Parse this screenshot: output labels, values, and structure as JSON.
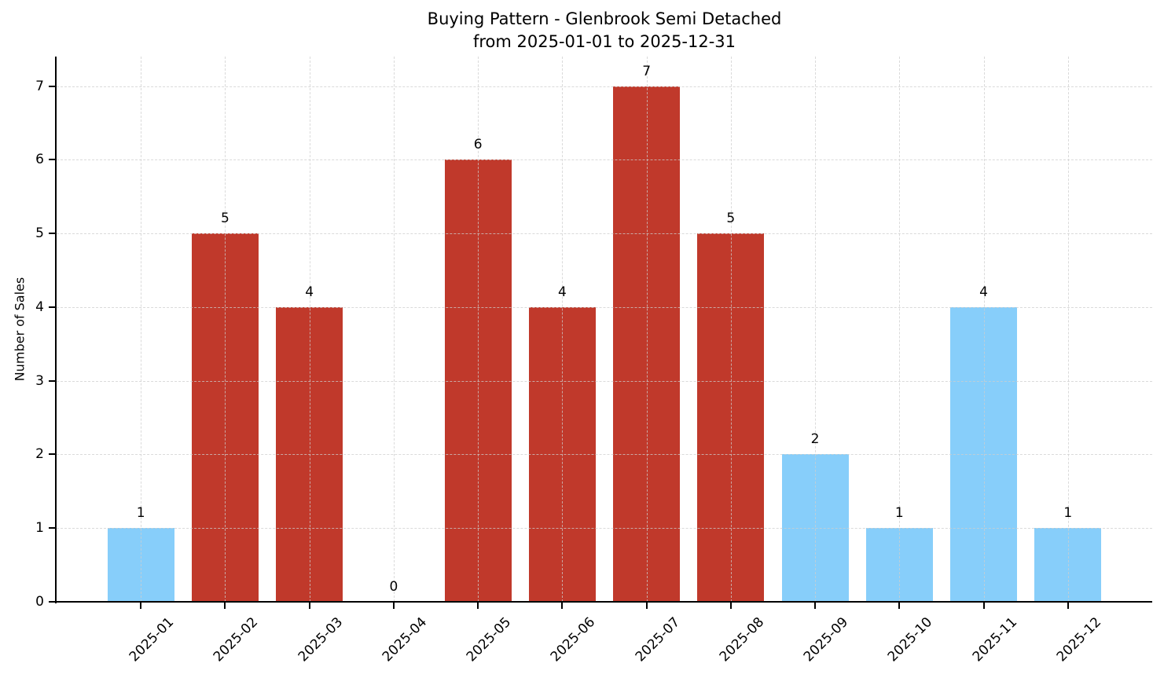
{
  "chart_data": {
    "type": "bar",
    "title": "Buying Pattern - Glenbrook Semi Detached",
    "subtitle": "from 2025-01-01 to 2025-12-31",
    "xlabel": "",
    "ylabel": "Number of Sales",
    "categories": [
      "2025-01",
      "2025-02",
      "2025-03",
      "2025-04",
      "2025-05",
      "2025-06",
      "2025-07",
      "2025-08",
      "2025-09",
      "2025-10",
      "2025-11",
      "2025-12"
    ],
    "values": [
      1,
      5,
      4,
      0,
      6,
      4,
      7,
      5,
      2,
      1,
      4,
      1
    ],
    "bar_colors": [
      "#87CEFA",
      "#C0392B",
      "#C0392B",
      "#87CEFA",
      "#C0392B",
      "#C0392B",
      "#C0392B",
      "#C0392B",
      "#87CEFA",
      "#87CEFA",
      "#87CEFA",
      "#87CEFA"
    ],
    "value_labels_shown": true,
    "yticks": [
      0,
      1,
      2,
      3,
      4,
      5,
      6,
      7
    ],
    "ylim": [
      0,
      7.4
    ],
    "x_tick_rotation": 45,
    "grid": true,
    "grid_style": "dashed",
    "legend": "none"
  },
  "colors": {
    "bar_low": "#87CEFA",
    "bar_high": "#C0392B",
    "grid": "#cdcdcd",
    "axis": "#000000",
    "text": "#000000",
    "background": "#ffffff"
  }
}
